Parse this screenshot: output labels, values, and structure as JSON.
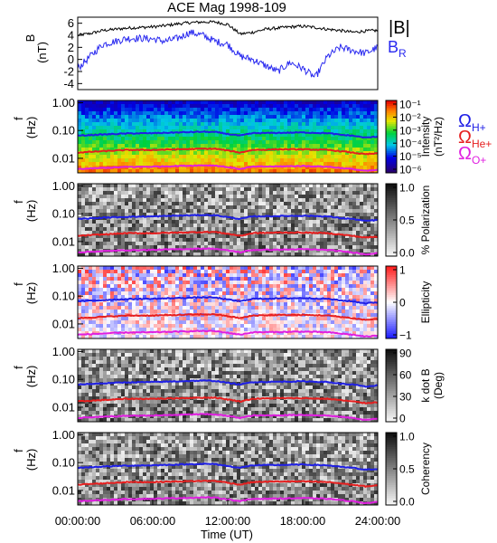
{
  "title": "ACE Mag 1998-109",
  "x_axis": {
    "label": "Time (UT)",
    "ticks": [
      "00:00:00",
      "06:00:00",
      "12:00:00",
      "18:00:00",
      "24:00:00"
    ],
    "range_hours": [
      0,
      24
    ]
  },
  "top_panel": {
    "ylabel_main": "B",
    "ylabel_unit": "(nT)",
    "yticks": [
      "6",
      "4",
      "2",
      "0",
      "-2",
      "-4"
    ],
    "legend": [
      {
        "label": "|B|",
        "color": "#000000"
      },
      {
        "label": "B",
        "sub": "R",
        "color": "#2a2af0"
      }
    ]
  },
  "freq_axis": {
    "ylabel_main": "f",
    "ylabel_unit": "(Hz)",
    "ticks": [
      "1.00",
      "0.10",
      "0.01"
    ]
  },
  "spectral_panels": [
    {
      "key": "intensity",
      "colorbar_title": "Intensity",
      "colorbar_unit": "(nT²/Hz)",
      "colormap": "rainbow",
      "colorbar_ticks": [
        "10⁻¹",
        "10⁻²",
        "10⁻³",
        "10⁻⁴",
        "10⁻⁵",
        "10⁻⁶"
      ]
    },
    {
      "key": "polarization",
      "colorbar_title": "% Polarization",
      "colorbar_unit": "",
      "colormap": "gray",
      "colorbar_ticks": [
        "1.0",
        "0.5",
        "0.0"
      ]
    },
    {
      "key": "ellipticity",
      "colorbar_title": "Ellipticity",
      "colorbar_unit": "",
      "colormap": "bwr",
      "colorbar_ticks": [
        "1",
        "0",
        "−1"
      ]
    },
    {
      "key": "kdotb",
      "colorbar_title": "k dot B",
      "colorbar_unit": "(Deg)",
      "colormap": "gray",
      "colorbar_ticks": [
        "90",
        "60",
        "30",
        "0"
      ]
    },
    {
      "key": "coherency",
      "colorbar_title": "Coherency",
      "colorbar_unit": "",
      "colormap": "gray",
      "colorbar_ticks": [
        "1.0",
        "0.5",
        "0.0"
      ]
    }
  ],
  "gyro_legend": [
    {
      "symbol": "Ω",
      "sub": "H+",
      "color": "#1f1fe6"
    },
    {
      "symbol": "Ω",
      "sub": "He+",
      "color": "#e61f1f"
    },
    {
      "symbol": "Ω",
      "sub": "O+",
      "color": "#e01fe0"
    }
  ],
  "chart_data": {
    "type": "line",
    "title": "ACE Mag 1998-109",
    "xlabel": "Time (UT)",
    "xlim": [
      0,
      24
    ],
    "top_panel": {
      "ylabel": "B (nT)",
      "ylim": [
        -5,
        7
      ],
      "x": [
        0,
        1,
        2,
        3,
        4,
        5,
        6,
        7,
        8,
        9,
        10,
        11,
        12,
        13,
        14,
        15,
        16,
        17,
        18,
        19,
        20,
        21,
        22,
        23,
        24
      ],
      "series": [
        {
          "name": "|B|",
          "values": [
            4.0,
            4.3,
            4.8,
            5.0,
            5.2,
            5.3,
            5.4,
            5.6,
            5.9,
            6.1,
            6.2,
            6.2,
            5.8,
            4.2,
            4.5,
            5.0,
            5.2,
            5.4,
            5.5,
            5.3,
            5.0,
            4.8,
            4.5,
            4.7,
            4.8
          ]
        },
        {
          "name": "B_R",
          "values": [
            -1.5,
            0.5,
            2.5,
            3.0,
            3.5,
            3.5,
            3.4,
            3.0,
            3.5,
            4.5,
            4.0,
            3.0,
            2.5,
            0.5,
            0.0,
            -1.0,
            -2.0,
            -0.5,
            -1.5,
            -3.0,
            0.5,
            2.0,
            1.5,
            1.0,
            2.0
          ]
        }
      ]
    },
    "gyrofrequency_lines_hz": {
      "x": [
        0,
        2,
        4,
        6,
        8,
        10,
        11,
        12,
        13,
        14,
        16,
        18,
        20,
        21,
        22,
        23,
        24
      ],
      "series": [
        {
          "name": "ΩH+",
          "values": [
            0.065,
            0.072,
            0.078,
            0.08,
            0.085,
            0.09,
            0.088,
            0.075,
            0.065,
            0.08,
            0.082,
            0.085,
            0.08,
            0.07,
            0.065,
            0.055,
            0.06
          ]
        },
        {
          "name": "ΩHe+",
          "values": [
            0.016,
            0.018,
            0.02,
            0.02,
            0.021,
            0.022,
            0.022,
            0.019,
            0.016,
            0.02,
            0.021,
            0.021,
            0.02,
            0.018,
            0.016,
            0.014,
            0.015
          ]
        },
        {
          "name": "ΩO+",
          "values": [
            0.0041,
            0.0045,
            0.0049,
            0.005,
            0.0053,
            0.0056,
            0.0055,
            0.0048,
            0.0041,
            0.005,
            0.0051,
            0.0053,
            0.005,
            0.0045,
            0.0041,
            0.0035,
            0.0038
          ]
        }
      ]
    },
    "freq_ylim_hz": [
      0.003,
      1.2
    ],
    "freq_scale": "log"
  }
}
